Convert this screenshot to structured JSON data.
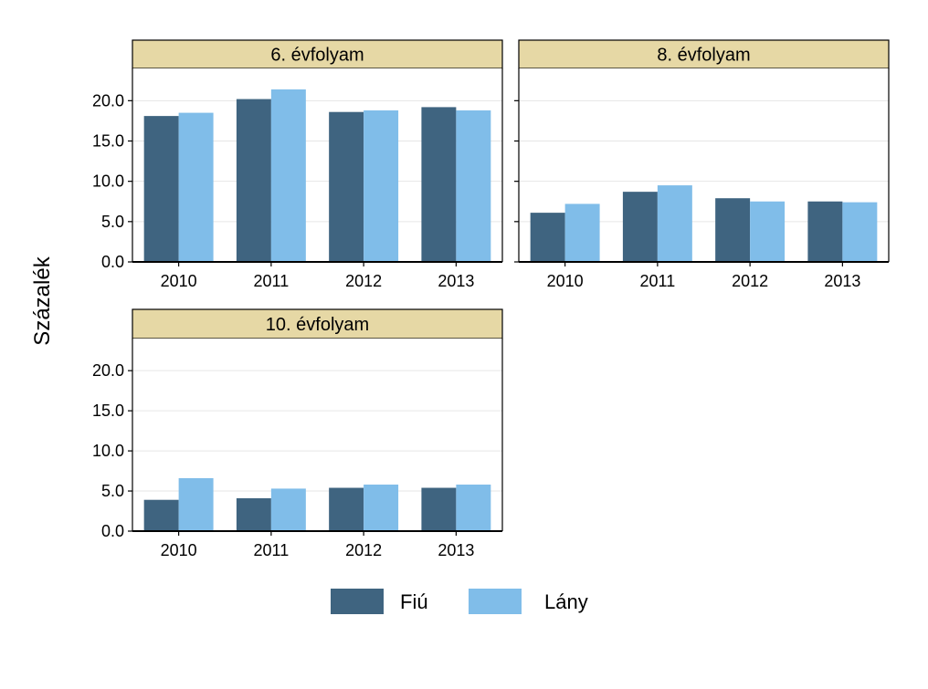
{
  "chart_data": {
    "type": "bar",
    "ylabel": "Százalék",
    "ylim": [
      0,
      24
    ],
    "yticks": [
      "0.0",
      "5.0",
      "10.0",
      "15.0",
      "20.0"
    ],
    "ytick_values": [
      0,
      5,
      10,
      15,
      20
    ],
    "grid": true,
    "legend_position": "bottom",
    "colors": {
      "Fiú": "#3f6480",
      "Lány": "#80bde9",
      "strip_bg": "#e6d8a5",
      "grid": "#e6e6e6"
    },
    "categories": [
      "2010",
      "2011",
      "2012",
      "2013"
    ],
    "legend": [
      "Fiú",
      "Lány"
    ],
    "panels": [
      {
        "title": "6. évfolyam",
        "series": [
          {
            "name": "Fiú",
            "values": [
              18.1,
              20.2,
              18.6,
              19.2
            ]
          },
          {
            "name": "Lány",
            "values": [
              18.5,
              21.4,
              18.8,
              18.8
            ]
          }
        ]
      },
      {
        "title": "8. évfolyam",
        "series": [
          {
            "name": "Fiú",
            "values": [
              6.1,
              8.7,
              7.9,
              7.5
            ]
          },
          {
            "name": "Lány",
            "values": [
              7.2,
              9.5,
              7.5,
              7.4
            ]
          }
        ]
      },
      {
        "title": "10. évfolyam",
        "series": [
          {
            "name": "Fiú",
            "values": [
              3.9,
              4.1,
              5.4,
              5.4
            ]
          },
          {
            "name": "Lány",
            "values": [
              6.6,
              5.3,
              5.8,
              5.8
            ]
          }
        ]
      }
    ]
  }
}
